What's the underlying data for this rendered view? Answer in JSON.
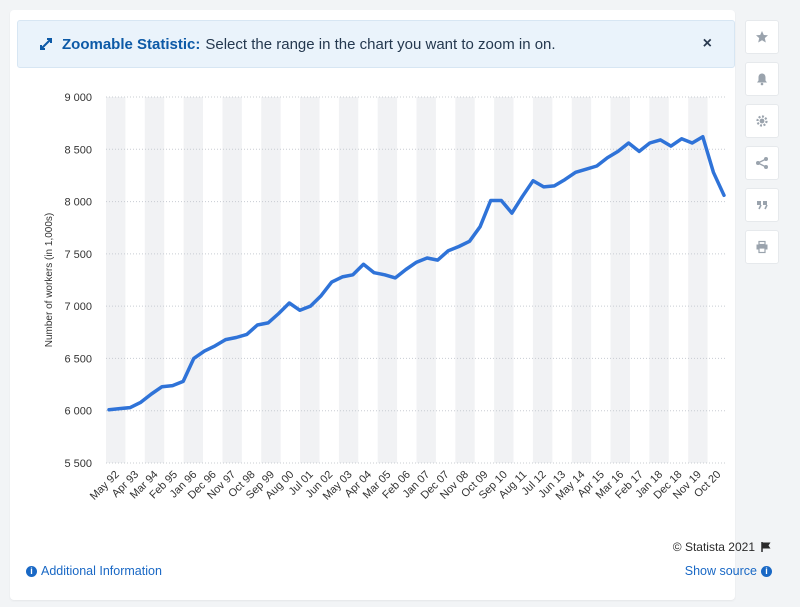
{
  "banner": {
    "label": "Zoomable Statistic:",
    "text": "Select the range in the chart you want to zoom in on.",
    "close": "×"
  },
  "sidebar": {
    "icons": [
      "star-icon",
      "bell-icon",
      "gear-icon",
      "share-icon",
      "quote-icon",
      "print-icon"
    ]
  },
  "footer": {
    "credit": "© Statista 2021",
    "additional_info": "Additional Information",
    "show_source": "Show source"
  },
  "colors": {
    "line": "#2f73d8",
    "grid": "#c8ccd2",
    "band": "#f1f2f4"
  },
  "chart_data": {
    "type": "line",
    "title": "",
    "xlabel": "",
    "ylabel": "Number of workers (in 1,000s)",
    "ylim": [
      5500,
      9000
    ],
    "yticks": [
      5500,
      6000,
      6500,
      7000,
      7500,
      8000,
      8500,
      9000
    ],
    "ytick_labels": [
      "5 500",
      "6 000",
      "6 500",
      "7 000",
      "7 500",
      "8 000",
      "8 500",
      "9 000"
    ],
    "x_tick_labels": [
      "May 92",
      "Apr 93",
      "Mar 94",
      "Feb 95",
      "Jan 96",
      "Dec 96",
      "Nov 97",
      "Oct 98",
      "Sep 99",
      "Aug 00",
      "Jul 01",
      "Jun 02",
      "May 03",
      "Apr 04",
      "Mar 05",
      "Feb 06",
      "Jan 07",
      "Dec 07",
      "Nov 08",
      "Oct 09",
      "Sep 10",
      "Aug 11",
      "Jul 12",
      "Jun 13",
      "May 14",
      "Apr 15",
      "Mar 16",
      "Feb 17",
      "Jan 18",
      "Dec 18",
      "Nov 19",
      "Oct 20"
    ],
    "grid": true,
    "legend": "none",
    "x": [
      "May 92",
      "Nov 92",
      "May 93",
      "Nov 93",
      "May 94",
      "Nov 94",
      "May 95",
      "Nov 95",
      "May 96",
      "Nov 96",
      "May 97",
      "Nov 97",
      "May 98",
      "Nov 98",
      "May 99",
      "Nov 99",
      "May 00",
      "Nov 00",
      "May 01",
      "Nov 01",
      "May 02",
      "Nov 02",
      "May 03",
      "Nov 03",
      "May 04",
      "Nov 04",
      "May 05",
      "Nov 05",
      "May 06",
      "Nov 06",
      "May 07",
      "Nov 07",
      "May 08",
      "Nov 08",
      "May 09",
      "Nov 09",
      "May 10",
      "Nov 10",
      "May 11",
      "Nov 11",
      "May 12",
      "Nov 12",
      "May 13",
      "Nov 13",
      "May 14",
      "Nov 14",
      "May 15",
      "Nov 15",
      "May 16",
      "Nov 16",
      "May 17",
      "Nov 17",
      "May 18",
      "Nov 18",
      "May 19",
      "Nov 19",
      "May 20",
      "Aug 20",
      "Nov 20"
    ],
    "series": [
      {
        "values": [
          6010,
          6020,
          6030,
          6080,
          6160,
          6230,
          6240,
          6280,
          6500,
          6570,
          6620,
          6680,
          6700,
          6730,
          6820,
          6840,
          6930,
          7030,
          6960,
          7000,
          7100,
          7230,
          7280,
          7300,
          7400,
          7320,
          7300,
          7270,
          7350,
          7420,
          7460,
          7440,
          7530,
          7570,
          7620,
          7760,
          8010,
          8010,
          7890,
          8050,
          8200,
          8140,
          8150,
          8210,
          8280,
          8310,
          8340,
          8420,
          8480,
          8560,
          8480,
          8560,
          8590,
          8530,
          8600,
          8560,
          8620,
          8280,
          8060
        ]
      }
    ]
  }
}
